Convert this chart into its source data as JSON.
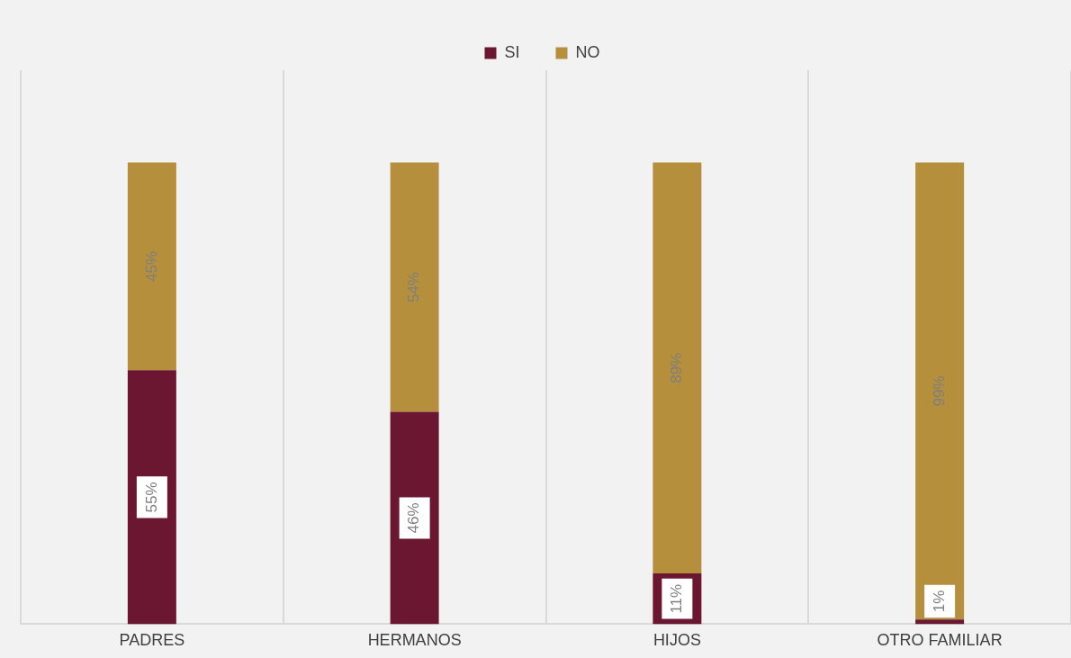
{
  "chart_data": {
    "type": "bar",
    "stacked": true,
    "categories": [
      "PADRES",
      "HERMANOS",
      "HIJOS",
      "OTRO FAMILIAR"
    ],
    "series": [
      {
        "name": "SI",
        "color": "#6b1731",
        "values": [
          55,
          46,
          11,
          1
        ],
        "value_labels": [
          "55%",
          "46%",
          "11%",
          "1%"
        ]
      },
      {
        "name": "NO",
        "color": "#b58f3c",
        "values": [
          45,
          54,
          89,
          99
        ],
        "value_labels": [
          "45%",
          "54%",
          "89%",
          "99%"
        ]
      }
    ],
    "grid": "x",
    "legend": "top"
  }
}
